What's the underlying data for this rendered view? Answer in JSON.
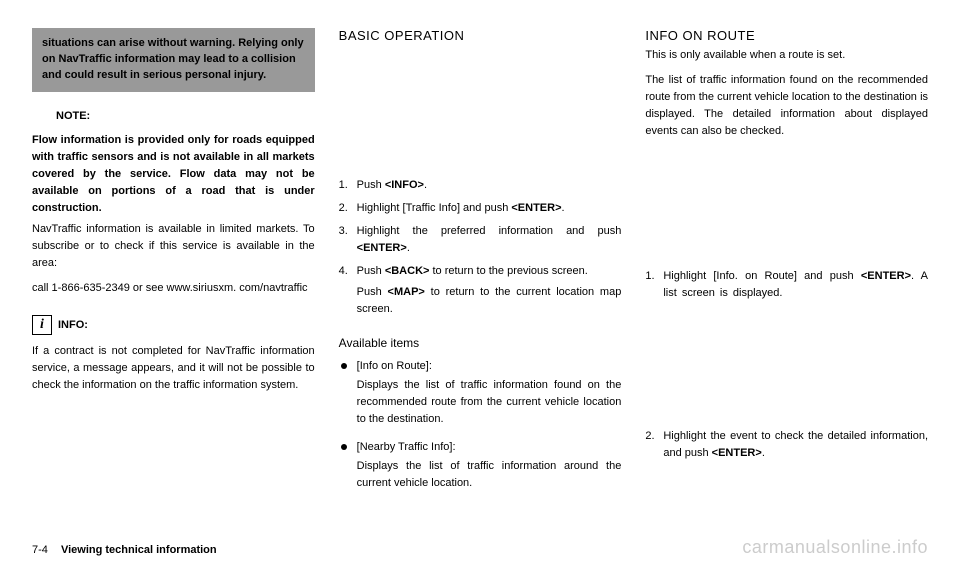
{
  "col1": {
    "warning": "situations can arise without warning. Relying only on NavTraffic information may lead to a collision and could result in serious personal injury.",
    "noteLabel": "NOTE:",
    "boldPara": "Flow information is provided only for roads equipped with traffic sensors and is not available in all markets covered by the service. Flow data may not be available on portions of a road that is under construction.",
    "para1": "NavTraffic information is available in limited markets. To subscribe or to check if this service is available in the area:",
    "para2": "call 1-866-635-2349 or see www.siriusxm. com/navtraffic",
    "infoIcon": "i",
    "infoLabel": "INFO:",
    "infoPara": "If a contract is not completed for NavTraffic information service, a message appears, and it will not be possible to check the information on the traffic information system."
  },
  "col2": {
    "heading": "BASIC OPERATION",
    "steps": [
      {
        "pre": "Push ",
        "btn": "<INFO>",
        "post": "."
      },
      {
        "pre": "Highlight [Traffic Info] and push ",
        "btn": "<ENTER>",
        "post": "."
      },
      {
        "pre": "Highlight the preferred information and push ",
        "btn": "<ENTER>",
        "post": "."
      },
      {
        "pre": "Push ",
        "btn": "<BACK>",
        "post": " to return to the previous screen.",
        "sub_pre": "Push ",
        "sub_btn": "<MAP>",
        "sub_post": " to return to the current location map screen."
      }
    ],
    "availHeading": "Available items",
    "bullets": [
      {
        "title": "[Info on Route]:",
        "body": "Displays the list of traffic information found on the recommended route from the current vehicle location to the destination."
      },
      {
        "title": "[Nearby Traffic Info]:",
        "body": "Displays the list of traffic information around the current vehicle location."
      }
    ]
  },
  "col3": {
    "heading": "INFO ON ROUTE",
    "intro": "This is only available when a route is set.",
    "para": "The list of traffic information found on the recommended route from the current vehicle location to the destination is displayed. The detailed information about displayed events can also be checked.",
    "steps": [
      {
        "pre": "Highlight [Info. on Route] and push ",
        "btn": "<ENTER>",
        "post": ". A list screen is displayed."
      },
      {
        "pre": "Highlight the event to check the detailed information, and push ",
        "btn": "<ENTER>",
        "post": "."
      }
    ]
  },
  "footer": {
    "page": "7-4",
    "section": "Viewing technical information",
    "watermark": "carmanualsonline.info"
  }
}
